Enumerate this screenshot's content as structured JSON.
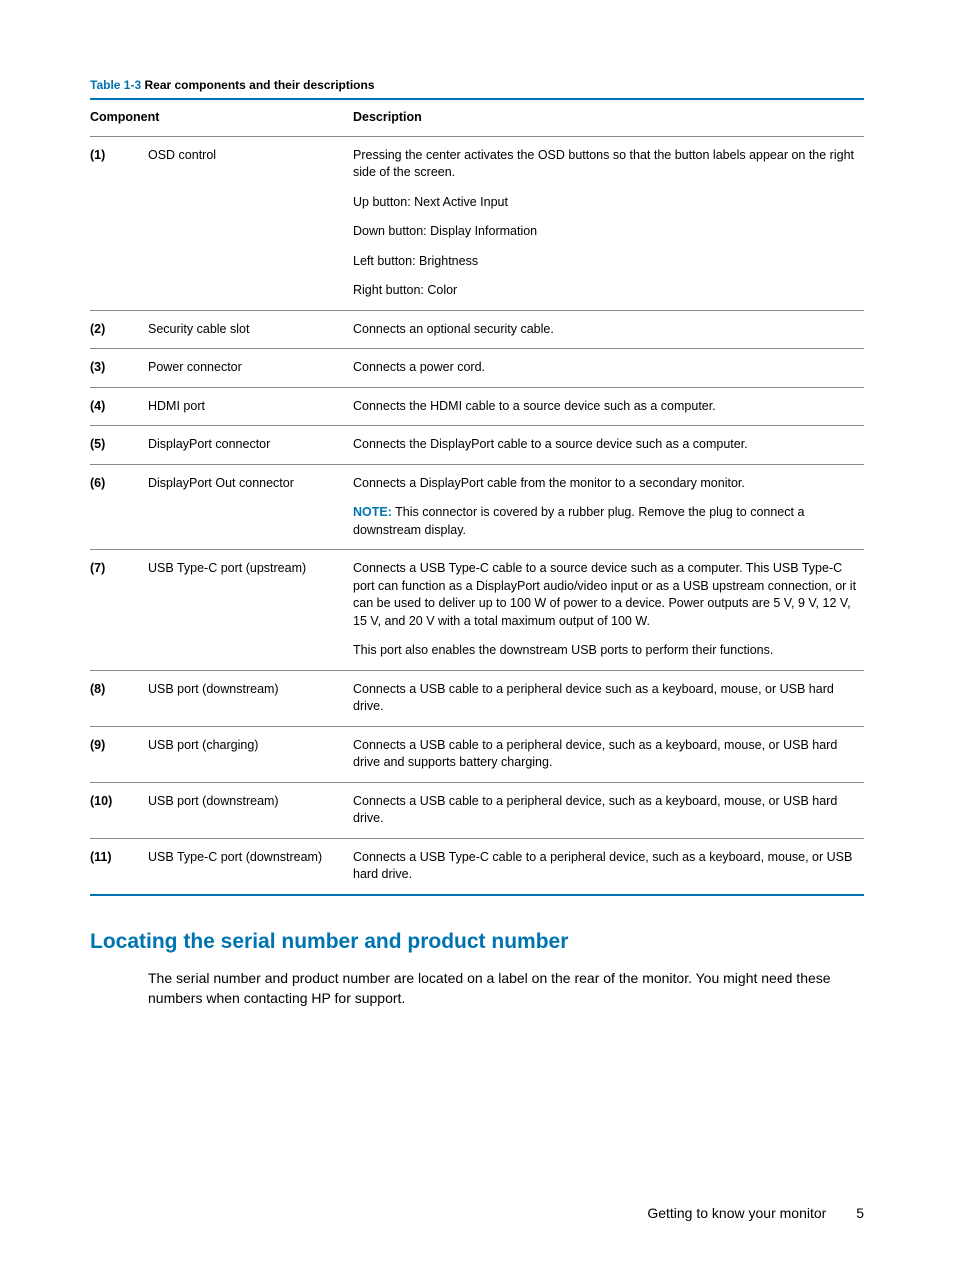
{
  "colors": {
    "accent": "#0073b1",
    "text": "#000000",
    "rule_light": "#888888",
    "background": "#ffffff"
  },
  "table": {
    "caption_prefix": "Table 1-3",
    "caption_title": "  Rear components and their descriptions",
    "header_component": "Component",
    "header_description": "Description",
    "note_label": "NOTE:",
    "rows": [
      {
        "num": "(1)",
        "component": "OSD control",
        "blocks": [
          "Pressing the center activates the OSD buttons so that the button labels appear on the right side of the screen.",
          "Up button: Next Active Input",
          "Down button: Display Information",
          "Left button: Brightness",
          "Right button: Color"
        ]
      },
      {
        "num": "(2)",
        "component": "Security cable slot",
        "blocks": [
          "Connects an optional security cable."
        ]
      },
      {
        "num": "(3)",
        "component": "Power connector",
        "blocks": [
          "Connects a power cord."
        ]
      },
      {
        "num": "(4)",
        "component": "HDMI port",
        "blocks": [
          "Connects the HDMI cable to a source device such as a computer."
        ]
      },
      {
        "num": "(5)",
        "component": "DisplayPort connector",
        "blocks": [
          "Connects the DisplayPort cable to a source device such as a computer."
        ]
      },
      {
        "num": "(6)",
        "component": "DisplayPort Out connector",
        "blocks": [
          "Connects a DisplayPort cable from the monitor to a secondary monitor.",
          {
            "note": "This connector is covered by a rubber plug. Remove the plug to connect a downstream display."
          }
        ]
      },
      {
        "num": "(7)",
        "component": "USB Type-C port (upstream)",
        "blocks": [
          "Connects a USB Type-C cable to a source device such as a computer. This USB Type-C port can function as a DisplayPort audio/video input or as a USB upstream connection, or it can be used to deliver up to 100 W of power to a device. Power outputs are 5 V, 9 V, 12 V, 15 V, and 20 V with a total maximum output of 100 W.",
          "This port also enables the downstream USB ports to perform their functions."
        ]
      },
      {
        "num": "(8)",
        "component": "USB port (downstream)",
        "blocks": [
          "Connects a USB cable to a peripheral device such as a keyboard, mouse, or USB hard drive."
        ]
      },
      {
        "num": "(9)",
        "component": "USB port (charging)",
        "blocks": [
          "Connects a USB cable to a peripheral device, such as a keyboard, mouse, or USB hard drive and supports battery charging."
        ]
      },
      {
        "num": "(10)",
        "component": "USB port (downstream)",
        "blocks": [
          "Connects a USB cable to a peripheral device, such as a keyboard, mouse, or USB hard drive."
        ]
      },
      {
        "num": "(11)",
        "component": "USB Type-C port (downstream)",
        "blocks": [
          "Connects a USB Type-C cable to a peripheral device, such as a keyboard, mouse, or USB hard drive."
        ]
      }
    ]
  },
  "section": {
    "heading": "Locating the serial number and product number",
    "body": "The serial number and product number are located on a label on the rear of the monitor. You might need these numbers when contacting HP for support."
  },
  "footer": {
    "text": "Getting to know your monitor",
    "page": "5"
  }
}
